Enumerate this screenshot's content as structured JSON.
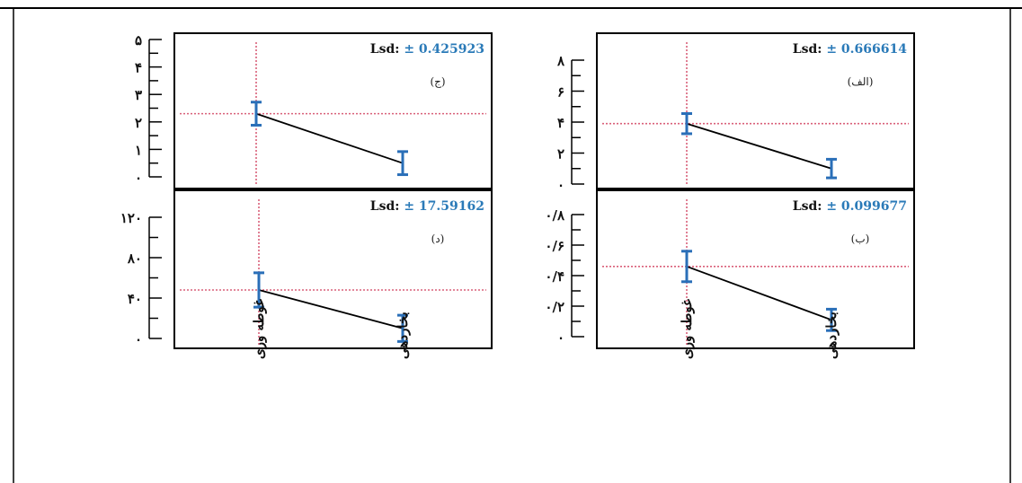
{
  "layout": "2x2 panels sharing x categories per column",
  "colors": {
    "frame": "#000000",
    "error_bar": "#2a6fb8",
    "reference_line": "#d9607a",
    "mean_line": "#000000",
    "lsd_value": "#2a7ab8"
  },
  "columns": [
    {
      "categories": [
        "غوطه وری",
        "بخاردهی"
      ]
    },
    {
      "categories": [
        "غوطه وری",
        "بخاردهی"
      ]
    }
  ],
  "chart_data": [
    {
      "type": "line",
      "panel_tag": "(ج)",
      "lsd_label": "Lsd:",
      "lsd_value": "± 0.425923",
      "categories": [
        "غوطه وری",
        "بخاردهی"
      ],
      "values": [
        2.3,
        0.5
      ],
      "error": [
        0.42,
        0.42
      ],
      "reference_y": 2.3,
      "ylim": [
        0,
        5
      ],
      "yticks": [
        0,
        1,
        2,
        3,
        4,
        5
      ],
      "ytick_labels": [
        "۰",
        "۱",
        "۲",
        "۳",
        "۴",
        "۵"
      ]
    },
    {
      "type": "line",
      "panel_tag": "(الف)",
      "lsd_label": "Lsd:",
      "lsd_value": "± 0.666614",
      "categories": [
        "غوطه وری",
        "بخاردهی"
      ],
      "values": [
        3.9,
        1.0
      ],
      "error": [
        0.65,
        0.6
      ],
      "reference_y": 3.9,
      "ylim": [
        0,
        8
      ],
      "yticks": [
        0,
        2,
        4,
        6,
        8
      ],
      "ytick_labels": [
        "۰",
        "۲",
        "۴",
        "۶",
        "۸"
      ]
    },
    {
      "type": "line",
      "panel_tag": "(د)",
      "lsd_label": "Lsd:",
      "lsd_value": "± 17.59162",
      "categories": [
        "غوطه وری",
        "بخاردهی"
      ],
      "values": [
        48,
        10
      ],
      "error": [
        17,
        13
      ],
      "reference_y": 48,
      "ylim": [
        0,
        130
      ],
      "yticks": [
        0,
        40,
        80,
        120
      ],
      "ytick_labels": [
        "۰",
        "۴۰",
        "۸۰",
        "۱۲۰"
      ]
    },
    {
      "type": "line",
      "panel_tag": "(ب)",
      "lsd_label": "Lsd:",
      "lsd_value": "± 0.099677",
      "categories": [
        "غوطه وری",
        "بخاردهی"
      ],
      "values": [
        0.46,
        0.11
      ],
      "error": [
        0.1,
        0.07
      ],
      "reference_y": 0.46,
      "ylim": [
        0,
        0.9
      ],
      "yticks": [
        0,
        0.2,
        0.4,
        0.6,
        0.8
      ],
      "ytick_labels": [
        "۰",
        "۰/۲",
        "۰/۴",
        "۰/۶",
        "۰/۸"
      ]
    }
  ]
}
